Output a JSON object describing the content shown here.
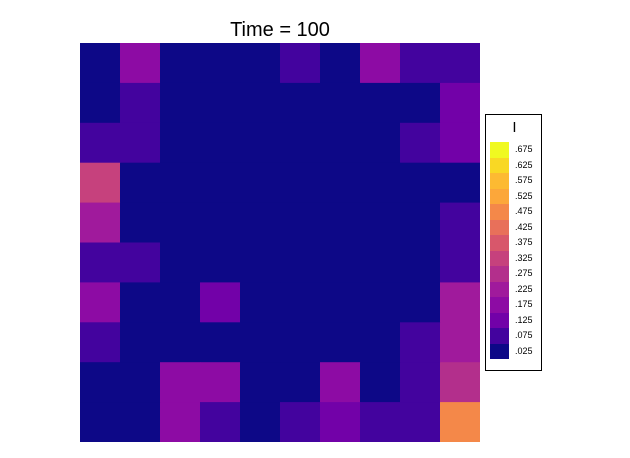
{
  "chart_data": {
    "type": "heatmap",
    "title": "Time = 100",
    "rows": 10,
    "cols": 10,
    "values": [
      [
        0.025,
        0.175,
        0.025,
        0.025,
        0.025,
        0.075,
        0.025,
        0.175,
        0.075,
        0.075
      ],
      [
        0.025,
        0.075,
        0.025,
        0.025,
        0.025,
        0.025,
        0.025,
        0.025,
        0.025,
        0.125
      ],
      [
        0.075,
        0.075,
        0.025,
        0.025,
        0.025,
        0.025,
        0.025,
        0.025,
        0.075,
        0.125
      ],
      [
        0.325,
        0.025,
        0.025,
        0.025,
        0.025,
        0.025,
        0.025,
        0.025,
        0.025,
        0.025
      ],
      [
        0.225,
        0.025,
        0.025,
        0.025,
        0.025,
        0.025,
        0.025,
        0.025,
        0.025,
        0.075
      ],
      [
        0.075,
        0.075,
        0.025,
        0.025,
        0.025,
        0.025,
        0.025,
        0.025,
        0.025,
        0.075
      ],
      [
        0.175,
        0.025,
        0.025,
        0.125,
        0.025,
        0.025,
        0.025,
        0.025,
        0.025,
        0.225
      ],
      [
        0.075,
        0.025,
        0.025,
        0.025,
        0.025,
        0.025,
        0.025,
        0.025,
        0.075,
        0.225
      ],
      [
        0.025,
        0.025,
        0.175,
        0.175,
        0.025,
        0.025,
        0.175,
        0.025,
        0.075,
        0.275
      ],
      [
        0.025,
        0.025,
        0.175,
        0.075,
        0.025,
        0.075,
        0.125,
        0.075,
        0.075,
        0.475
      ]
    ],
    "legend": {
      "title": "I",
      "position": "right",
      "breaks": [
        {
          "label": ".675",
          "color": "#f0f921"
        },
        {
          "label": ".625",
          "color": "#f9d824"
        },
        {
          "label": ".575",
          "color": "#fdba32"
        },
        {
          "label": ".525",
          "color": "#fca73a"
        },
        {
          "label": ".475",
          "color": "#f48849"
        },
        {
          "label": ".425",
          "color": "#e8705a"
        },
        {
          "label": ".375",
          "color": "#d8576b"
        },
        {
          "label": ".325",
          "color": "#c6417d"
        },
        {
          "label": ".275",
          "color": "#b32f8c"
        },
        {
          "label": ".225",
          "color": "#a01a9c"
        },
        {
          "label": ".175",
          "color": "#8d0ba4"
        },
        {
          "label": ".125",
          "color": "#7201a8"
        },
        {
          "label": ".075",
          "color": "#43039e"
        },
        {
          "label": ".025",
          "color": "#0d0887"
        }
      ]
    }
  }
}
